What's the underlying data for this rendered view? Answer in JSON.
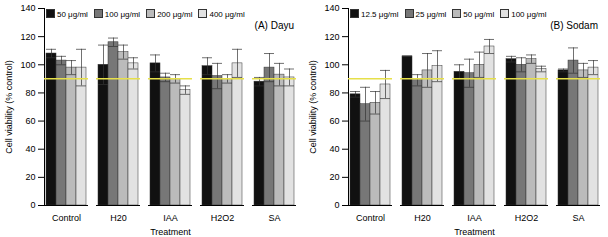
{
  "chart_data": [
    {
      "type": "bar",
      "title": "(A) Dayu",
      "x_label": "Treatment",
      "y_label": "Cell viability (% control)",
      "categories": [
        "Control",
        "H20",
        "IAA",
        "H2O2",
        "SA"
      ],
      "series": [
        {
          "name": "50  μg/ml",
          "color": "#111111",
          "values": [
            108,
            100,
            101,
            99,
            88
          ],
          "errors": [
            3,
            14,
            6,
            6,
            3
          ]
        },
        {
          "name": "100  μg/ml",
          "color": "#777777",
          "values": [
            103,
            116,
            91,
            92,
            98
          ],
          "errors": [
            3,
            3,
            3,
            9,
            10
          ]
        },
        {
          "name": "200  μg/ml",
          "color": "#bbbbbb",
          "values": [
            98,
            109,
            90,
            90,
            93
          ],
          "errors": [
            5,
            5,
            3,
            3,
            8
          ]
        },
        {
          "name": "400  μg/ml",
          "color": "#e2e2e2",
          "values": [
            98,
            101,
            82,
            101,
            91
          ],
          "errors": [
            13,
            4,
            3,
            10,
            6
          ]
        }
      ],
      "ylim": [
        0,
        140
      ],
      "yticks": [
        0,
        20,
        40,
        60,
        80,
        100,
        120,
        140
      ],
      "reference_line": 90,
      "legend": "top-left"
    },
    {
      "type": "bar",
      "title": "(B) Sodam",
      "x_label": "Treatment",
      "y_label": "Cell viability (% control)",
      "categories": [
        "Control",
        "H20",
        "IAA",
        "H2O2",
        "SA"
      ],
      "series": [
        {
          "name": "12.5  μg/ml",
          "color": "#111111",
          "values": [
            79,
            106,
            95,
            104,
            96
          ],
          "errors": [
            2,
            0,
            5,
            2,
            1
          ]
        },
        {
          "name": "25  μg/ml",
          "color": "#777777",
          "values": [
            72,
            89,
            94,
            100,
            103
          ],
          "errors": [
            12,
            4,
            10,
            5,
            9
          ]
        },
        {
          "name": "50  μg/ml",
          "color": "#bbbbbb",
          "values": [
            73,
            96,
            100,
            104,
            96
          ],
          "errors": [
            8,
            12,
            9,
            3,
            5
          ]
        },
        {
          "name": "100  μg/ml",
          "color": "#e2e2e2",
          "values": [
            86,
            99,
            113,
            97,
            98
          ],
          "errors": [
            10,
            11,
            5,
            2,
            5
          ]
        }
      ],
      "ylim": [
        0,
        140
      ],
      "yticks": [
        0,
        20,
        40,
        60,
        80,
        100,
        120,
        140
      ],
      "reference_line": 90,
      "legend": "top-left"
    }
  ]
}
